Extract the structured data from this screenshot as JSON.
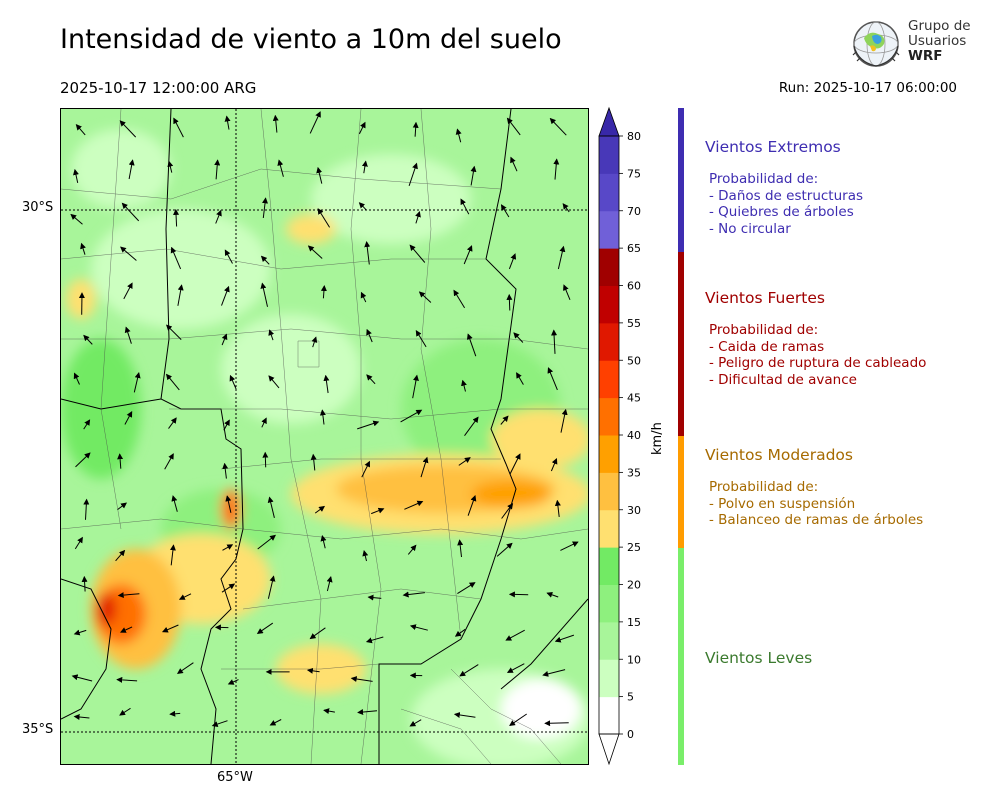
{
  "header": {
    "title": "Intensidad de viento a 10m del suelo",
    "valid_time": "2025-10-17 12:00:00 ARG",
    "run": "Run: 2025-10-17 06:00:00"
  },
  "logo": {
    "line1": "Grupo de",
    "line2": "Usuarios",
    "line3": "WRF"
  },
  "map": {
    "lat_labels": [
      "30°S",
      "35°S"
    ],
    "lon_labels": [
      "65°W"
    ]
  },
  "colorbar": {
    "unit": "km/h",
    "ticks": [
      "0",
      "5",
      "10",
      "15",
      "20",
      "25",
      "30",
      "35",
      "40",
      "45",
      "50",
      "55",
      "60",
      "65",
      "70",
      "75",
      "80"
    ],
    "colors": [
      "#ffffff",
      "#ccffc0",
      "#a8f59a",
      "#8ef07e",
      "#72ea64",
      "#ffe070",
      "#ffc040",
      "#ffa000",
      "#ff7000",
      "#ff4000",
      "#e01800",
      "#c00000",
      "#a00000",
      "#7060d8",
      "#5848c8",
      "#4838b8",
      "#3828a8"
    ]
  },
  "categories": [
    {
      "name": "Vientos Extremos",
      "color": "#3e2db1",
      "lines": [
        "Probabilidad de:",
        "- Daños de estructuras",
        "- Quiebres de árboles",
        "- No circular"
      ]
    },
    {
      "name": "Vientos Fuertes",
      "color": "#a00000",
      "lines": [
        "Probabilidad de:",
        "- Caida de ramas",
        "- Peligro de ruptura de cableado",
        "- Dificultad de avance"
      ]
    },
    {
      "name": "Vientos Moderados",
      "color": "#a66a00",
      "lines": [
        "Probabilidad de:",
        "- Polvo en suspensión",
        "- Balanceo de ramas de árboles"
      ]
    },
    {
      "name": "Vientos Leves",
      "color": "#3b7a2e",
      "lines": []
    }
  ],
  "category_bar_colors": [
    "#3e2db1",
    "#a00000",
    "#ff9c00",
    "#7aee6a"
  ]
}
